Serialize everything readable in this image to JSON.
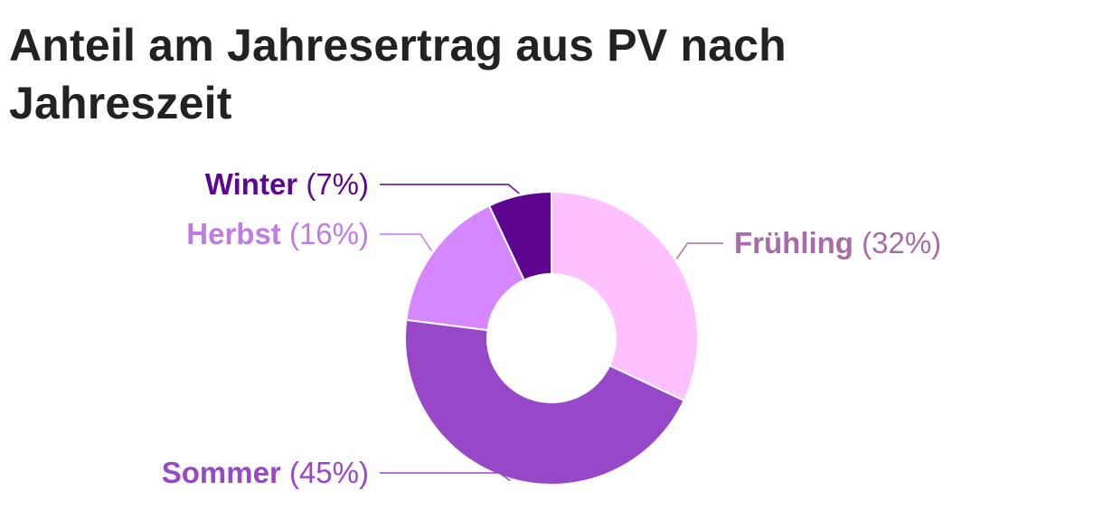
{
  "chart_data": {
    "type": "pie",
    "title": "Anteil am Jahresertrag aus PV nach Jahreszeit",
    "categories": [
      "Frühling",
      "Sommer",
      "Herbst",
      "Winter"
    ],
    "values": [
      32,
      45,
      16,
      7
    ],
    "value_labels": [
      "(32%)",
      "(45%)",
      "(16%)",
      "(7%)"
    ],
    "unit": "%",
    "donut": true,
    "colors": [
      "#ffc0ff",
      "#9748c8",
      "#d687ff",
      "#5e068f"
    ],
    "label_colors": [
      "#a96ca9",
      "#9748c8",
      "#c17ae6",
      "#5e068f"
    ]
  }
}
